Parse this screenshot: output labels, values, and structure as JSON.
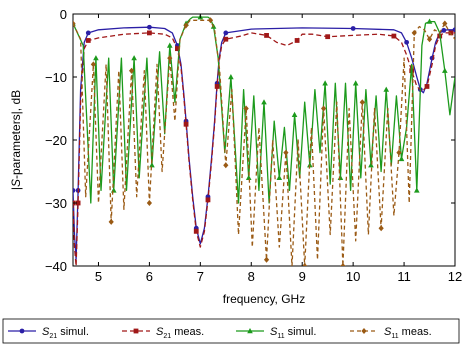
{
  "chart_data": {
    "type": "line",
    "xlabel": "frequency, GHz",
    "ylabel_parts": [
      "|",
      "S",
      "-parameters|, dB"
    ],
    "xlim": [
      4.5,
      12
    ],
    "ylim": [
      -40,
      0
    ],
    "xticks": [
      5,
      6,
      7,
      8,
      9,
      10,
      11,
      12
    ],
    "yticks": [
      0,
      -10,
      -20,
      -30,
      -40
    ],
    "grid": false,
    "legend_position": "bottom",
    "series": [
      {
        "name": "S21 simul.",
        "label_main": "S",
        "label_sub": "21",
        "label_suffix": " simul.",
        "color": "#2b1fa6",
        "dash": "solid",
        "marker": "circle",
        "x": [
          4.5,
          4.53,
          4.56,
          4.6,
          4.65,
          4.72,
          4.8,
          5.0,
          5.5,
          6.0,
          6.3,
          6.45,
          6.55,
          6.62,
          6.68,
          6.72,
          6.78,
          6.85,
          6.92,
          7.0,
          7.08,
          7.15,
          7.22,
          7.28,
          7.33,
          7.37,
          7.42,
          7.5,
          8.0,
          9.0,
          10.0,
          10.8,
          10.95,
          11.05,
          11.15,
          11.25,
          11.32,
          11.38,
          11.45,
          11.55,
          11.62,
          11.7,
          11.78,
          11.85,
          11.92,
          12.0
        ],
        "y": [
          -28,
          -35,
          -39,
          -28,
          -12,
          -4.5,
          -3,
          -2.5,
          -2.2,
          -2.1,
          -2.3,
          -3,
          -5,
          -8,
          -13,
          -17,
          -23,
          -29,
          -34,
          -36.5,
          -34,
          -29,
          -23,
          -17,
          -11,
          -7,
          -4.5,
          -3,
          -2.4,
          -2.2,
          -2.3,
          -2.5,
          -3,
          -4.5,
          -7,
          -10,
          -12,
          -12.5,
          -11,
          -7,
          -4.5,
          -3,
          -2.6,
          -2.5,
          -2.5,
          -2.5
        ]
      },
      {
        "name": "S21 meas.",
        "label_main": "S",
        "label_sub": "21",
        "label_suffix": " meas.",
        "color": "#a01818",
        "dash": "5,3",
        "marker": "square",
        "x": [
          4.5,
          4.53,
          4.56,
          4.6,
          4.65,
          4.72,
          4.8,
          5.0,
          5.5,
          6.0,
          6.3,
          6.45,
          6.55,
          6.62,
          6.68,
          6.72,
          6.78,
          6.85,
          6.92,
          7.0,
          7.08,
          7.15,
          7.22,
          7.28,
          7.33,
          7.37,
          7.42,
          7.5,
          7.8,
          8.0,
          8.3,
          8.5,
          8.7,
          8.9,
          9.0,
          9.2,
          9.5,
          10.0,
          10.5,
          10.8,
          10.95,
          11.05,
          11.15,
          11.25,
          11.35,
          11.45,
          11.55,
          11.62,
          11.7,
          11.78,
          11.85,
          11.92,
          12.0
        ],
        "y": [
          -30,
          -37,
          -40,
          -30,
          -14,
          -5.5,
          -4.2,
          -3.8,
          -3.2,
          -3.0,
          -3.2,
          -3.8,
          -5.5,
          -8.5,
          -13.5,
          -17.5,
          -23.5,
          -29.5,
          -34.5,
          -37,
          -34.5,
          -29.5,
          -23.5,
          -17.5,
          -11.5,
          -7.5,
          -5,
          -4,
          -3.5,
          -3.0,
          -3.4,
          -4.5,
          -5,
          -4.2,
          -3.2,
          -3.2,
          -3.6,
          -3.4,
          -3.2,
          -3.5,
          -4.5,
          -6.5,
          -9,
          -11.5,
          -12.3,
          -11.5,
          -8,
          -5,
          -3.5,
          -3,
          -3,
          -3,
          -3
        ]
      },
      {
        "name": "S11 simul.",
        "label_main": "S",
        "label_sub": "11",
        "label_suffix": " simul.",
        "color": "#1c9a1c",
        "dash": "solid",
        "marker": "triangle",
        "x": [
          4.5,
          4.7,
          4.85,
          4.95,
          5.05,
          5.2,
          5.3,
          5.45,
          5.55,
          5.7,
          5.8,
          5.95,
          6.05,
          6.2,
          6.3,
          6.4,
          6.5,
          6.6,
          6.72,
          6.8,
          6.85,
          7.0,
          7.15,
          7.2,
          7.26,
          7.35,
          7.48,
          7.6,
          7.75,
          7.85,
          7.95,
          8.05,
          8.15,
          8.25,
          8.35,
          8.45,
          8.55,
          8.65,
          8.75,
          8.85,
          8.95,
          9.05,
          9.15,
          9.25,
          9.35,
          9.45,
          9.55,
          9.65,
          9.75,
          9.85,
          9.95,
          10.05,
          10.15,
          10.25,
          10.35,
          10.45,
          10.55,
          10.65,
          10.75,
          10.85,
          10.95,
          11.05,
          11.15,
          11.25,
          11.35,
          11.42,
          11.5,
          11.6,
          11.7,
          11.8,
          11.9,
          12.0
        ],
        "y": [
          -1.5,
          -5,
          -30,
          -7,
          -28,
          -7,
          -28,
          -7,
          -28,
          -7,
          -26,
          -7,
          -24,
          -6,
          -19,
          -5,
          -14,
          -4,
          -1.5,
          -0.8,
          -0.5,
          -0.5,
          -0.5,
          -0.8,
          -2,
          -7,
          -22,
          -10,
          -30,
          -12,
          -26,
          -13,
          -28,
          -14,
          -30,
          -17,
          -26,
          -18,
          -28,
          -16,
          -26,
          -14,
          -24,
          -12,
          -22,
          -11,
          -27,
          -11,
          -26,
          -11,
          -28,
          -11,
          -26,
          -12,
          -24,
          -13,
          -25,
          -12,
          -24,
          -13,
          -23,
          -18,
          -8,
          -28,
          -5,
          -1.5,
          -1.2,
          -1.2,
          -3,
          -9,
          -16,
          -10
        ]
      },
      {
        "name": "S11 meas.",
        "label_main": "S",
        "label_sub": "11",
        "label_suffix": " meas.",
        "color": "#9a5a14",
        "dash": "4,3",
        "marker": "diamond",
        "x": [
          4.5,
          4.65,
          4.75,
          4.9,
          5.0,
          5.15,
          5.25,
          5.4,
          5.5,
          5.65,
          5.75,
          5.9,
          6.0,
          6.15,
          6.25,
          6.4,
          6.5,
          6.6,
          6.72,
          6.8,
          7.0,
          7.2,
          7.28,
          7.38,
          7.5,
          7.62,
          7.75,
          7.9,
          8.02,
          8.15,
          8.3,
          8.42,
          8.55,
          8.68,
          8.8,
          8.92,
          9.05,
          9.18,
          9.3,
          9.42,
          9.55,
          9.68,
          9.8,
          9.92,
          10.05,
          10.18,
          10.3,
          10.42,
          10.55,
          10.68,
          10.8,
          10.9,
          11.0,
          11.1,
          11.2,
          11.3,
          11.4,
          11.5,
          11.6,
          11.7,
          11.8,
          11.9,
          12.0
        ],
        "y": [
          -1.5,
          -4,
          -29,
          -8,
          -30,
          -8,
          -33,
          -9,
          -31,
          -9,
          -29,
          -9,
          -30,
          -8,
          -25,
          -7,
          -17,
          -4,
          -1.8,
          -1,
          -1,
          -1,
          -2.5,
          -9,
          -24,
          -12,
          -35,
          -15,
          -37,
          -18,
          -39,
          -20,
          -37,
          -22,
          -40,
          -20,
          -40,
          -18,
          -39,
          -15,
          -35,
          -14,
          -40,
          -15,
          -36,
          -14,
          -35,
          -15,
          -34,
          -15,
          -32,
          -22,
          -7,
          -30,
          -3,
          -2,
          -2.5,
          -4,
          -2.5,
          -3,
          -1.5,
          -3,
          -4
        ]
      }
    ]
  }
}
